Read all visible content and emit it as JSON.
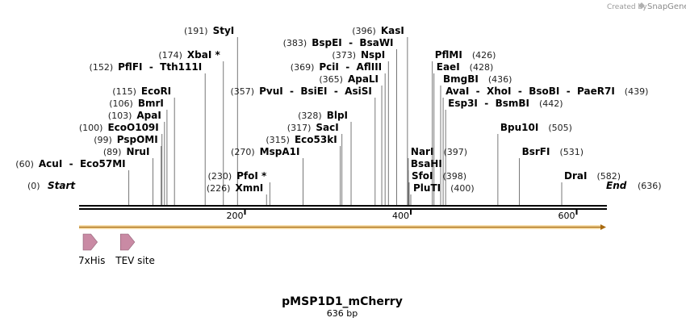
{
  "watermark": {
    "created_by": "Created by",
    "brand": "SnapGene"
  },
  "map": {
    "name": "pMSP1D1_mCherry",
    "length_label": "636 bp",
    "length": 636,
    "start_label": "Start",
    "start_pos": "(0)",
    "end_label": "End",
    "end_pos": "(636)",
    "ticks": [
      {
        "value": 200,
        "label": "200"
      },
      {
        "value": 400,
        "label": "400"
      },
      {
        "value": 600,
        "label": "600"
      }
    ],
    "sites": [
      {
        "pos": 60,
        "pos_label": "(60)",
        "names": "AcuI  -  Eco57MI",
        "row": 12,
        "side": "right"
      },
      {
        "pos": 89,
        "pos_label": "(89)",
        "names": "NruI",
        "row": 11,
        "side": "right"
      },
      {
        "pos": 99,
        "pos_label": "(99)",
        "names": "PspOMI",
        "row": 10,
        "side": "right"
      },
      {
        "pos": 100,
        "pos_label": "(100)",
        "names": "EcoO109I",
        "row": 9,
        "side": "right"
      },
      {
        "pos": 103,
        "pos_label": "(103)",
        "names": "ApaI",
        "row": 8,
        "side": "right"
      },
      {
        "pos": 106,
        "pos_label": "(106)",
        "names": "BmrI",
        "row": 7,
        "side": "right"
      },
      {
        "pos": 115,
        "pos_label": "(115)",
        "names": "EcoRI",
        "row": 6,
        "side": "right"
      },
      {
        "pos": 152,
        "pos_label": "(152)",
        "names": "PflFI  -  Tth111I",
        "row": 4,
        "side": "right"
      },
      {
        "pos": 174,
        "pos_label": "(174)",
        "names": "XbaI *",
        "row": 3,
        "side": "right"
      },
      {
        "pos": 191,
        "pos_label": "(191)",
        "names": "StyI",
        "row": 1,
        "side": "right"
      },
      {
        "pos": 226,
        "pos_label": "(226)",
        "names": "XmnI",
        "row": 14,
        "side": "right"
      },
      {
        "pos": 230,
        "pos_label": "(230)",
        "names": "PfoI *",
        "row": 13,
        "side": "right"
      },
      {
        "pos": 270,
        "pos_label": "(270)",
        "names": "MspA1I",
        "row": 11,
        "side": "right"
      },
      {
        "pos": 315,
        "pos_label": "(315)",
        "names": "Eco53kI",
        "row": 10,
        "side": "right"
      },
      {
        "pos": 317,
        "pos_label": "(317)",
        "names": "SacI",
        "row": 9,
        "side": "right"
      },
      {
        "pos": 328,
        "pos_label": "(328)",
        "names": "BlpI",
        "row": 8,
        "side": "right"
      },
      {
        "pos": 357,
        "pos_label": "(357)",
        "names": "PvuI  -  BsiEI  -  AsiSI",
        "row": 6,
        "side": "right"
      },
      {
        "pos": 365,
        "pos_label": "(365)",
        "names": "ApaLI",
        "row": 5,
        "side": "right"
      },
      {
        "pos": 369,
        "pos_label": "(369)",
        "names": "PciI  -  AflIII",
        "row": 4,
        "side": "right"
      },
      {
        "pos": 373,
        "pos_label": "(373)",
        "names": "NspI",
        "row": 3,
        "side": "right"
      },
      {
        "pos": 383,
        "pos_label": "(383)",
        "names": "BspEI  -  BsaWI",
        "row": 2,
        "side": "right"
      },
      {
        "pos": 396,
        "pos_label": "(396)",
        "names": "KasI",
        "row": 1,
        "side": "right"
      },
      {
        "pos": 397,
        "pos_label": "(397)",
        "names": "NarI",
        "row": 11,
        "side": "left"
      },
      {
        "pos": 397,
        "pos_label": "",
        "names": "BsaHI",
        "row": 12,
        "side": "left"
      },
      {
        "pos": 398,
        "pos_label": "(398)",
        "names": "SfoI",
        "row": 13,
        "side": "left"
      },
      {
        "pos": 400,
        "pos_label": "(400)",
        "names": "PluTI",
        "row": 14,
        "side": "left"
      },
      {
        "pos": 426,
        "pos_label": "(426)",
        "names": "PflMI",
        "row": 3,
        "side": "left"
      },
      {
        "pos": 428,
        "pos_label": "(428)",
        "names": "EaeI",
        "row": 4,
        "side": "left"
      },
      {
        "pos": 436,
        "pos_label": "(436)",
        "names": "BmgBI",
        "row": 5,
        "side": "left"
      },
      {
        "pos": 439,
        "pos_label": "(439)",
        "names": "AvaI  -  XhoI  -  BsoBI  -  PaeR7I",
        "row": 6,
        "side": "left"
      },
      {
        "pos": 442,
        "pos_label": "(442)",
        "names": "Esp3I  -  BsmBI",
        "row": 7,
        "side": "left"
      },
      {
        "pos": 505,
        "pos_label": "(505)",
        "names": "Bpu10I",
        "row": 9,
        "side": "left"
      },
      {
        "pos": 531,
        "pos_label": "(531)",
        "names": "BsrFI",
        "row": 11,
        "side": "left"
      },
      {
        "pos": 582,
        "pos_label": "(582)",
        "names": "DraI",
        "row": 13,
        "side": "left"
      }
    ],
    "features": [
      {
        "name": "7xHis",
        "start": 1,
        "end": 22,
        "color": "#c98aa4"
      },
      {
        "name": "TEV site",
        "start": 46,
        "end": 67,
        "color": "#c98aa4"
      }
    ],
    "orf": {
      "start": 0,
      "end": 636,
      "color": "#e0a030"
    }
  }
}
